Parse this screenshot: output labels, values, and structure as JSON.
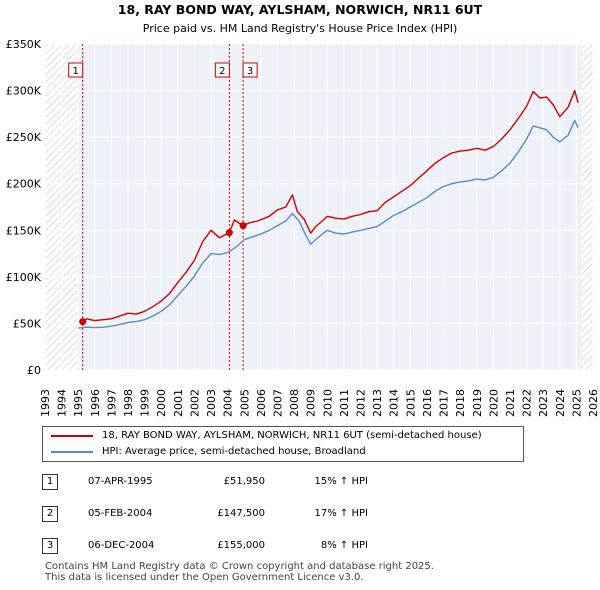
{
  "chart_data": {
    "type": "line",
    "title": "18, RAY BOND WAY, AYLSHAM, NORWICH, NR11 6UT",
    "subtitle": "Price paid vs. HM Land Registry's House Price Index (HPI)",
    "xlim": [
      1993,
      2026
    ],
    "ylim": [
      0,
      350000
    ],
    "x_ticks": [
      1993,
      1994,
      1995,
      1996,
      1997,
      1998,
      1999,
      2000,
      2001,
      2002,
      2003,
      2004,
      2005,
      2006,
      2007,
      2008,
      2009,
      2010,
      2011,
      2012,
      2013,
      2014,
      2015,
      2016,
      2017,
      2018,
      2019,
      2020,
      2021,
      2022,
      2023,
      2024,
      2025,
      2026
    ],
    "y_ticks": [
      0,
      50000,
      100000,
      150000,
      200000,
      250000,
      300000,
      350000
    ],
    "y_tick_labels": [
      "£0",
      "£50K",
      "£100K",
      "£150K",
      "£200K",
      "£250K",
      "£300K",
      "£350K"
    ],
    "hatch_before": 1995.0,
    "hatch_after": 2025.3,
    "series": [
      {
        "name": "18, RAY BOND WAY, AYLSHAM, NORWICH, NR11 6UT (semi-detached house)",
        "color": "#cc0000",
        "x": [
          1995.27,
          1995.5,
          1996,
          1996.5,
          1997,
          1997.5,
          1998,
          1998.5,
          1999,
          1999.5,
          2000,
          2000.5,
          2001,
          2001.5,
          2002,
          2002.5,
          2003,
          2003.5,
          2004.1,
          2004.4,
          2004.93,
          2005.3,
          2005.8,
          2006.5,
          2007,
          2007.5,
          2007.9,
          2008.2,
          2008.6,
          2009,
          2009.3,
          2009.7,
          2010,
          2010.5,
          2011,
          2011.5,
          2012,
          2012.5,
          2013,
          2013.5,
          2014,
          2014.5,
          2015,
          2015.5,
          2016,
          2016.5,
          2017,
          2017.5,
          2018,
          2018.5,
          2019,
          2019.5,
          2020,
          2020.5,
          2021,
          2021.5,
          2022,
          2022.4,
          2022.8,
          2023.2,
          2023.6,
          2024,
          2024.5,
          2024.9,
          2025.1
        ],
        "y": [
          51950,
          55000,
          53000,
          54000,
          55000,
          58000,
          61000,
          60000,
          63000,
          68000,
          74000,
          82000,
          94000,
          105000,
          118000,
          138000,
          150000,
          142000,
          147500,
          161000,
          155000,
          158000,
          160000,
          165000,
          172000,
          175000,
          188000,
          170000,
          162000,
          147000,
          154000,
          160000,
          165000,
          163000,
          162000,
          165000,
          167000,
          170000,
          171000,
          180000,
          186000,
          192000,
          198000,
          206000,
          214000,
          222000,
          228000,
          233000,
          235000,
          236000,
          238000,
          236000,
          240000,
          248000,
          258000,
          270000,
          283000,
          299000,
          292000,
          293000,
          285000,
          272000,
          282000,
          300000,
          287000
        ]
      },
      {
        "name": "HPI: Average price, semi-detached house, Broadland",
        "color": "#5b8ac5",
        "x": [
          1995,
          1995.5,
          1996,
          1996.5,
          1997,
          1997.5,
          1998,
          1998.5,
          1999,
          1999.5,
          2000,
          2000.5,
          2001,
          2001.5,
          2002,
          2002.5,
          2003,
          2003.5,
          2004,
          2004.5,
          2005,
          2005.5,
          2006,
          2006.5,
          2007,
          2007.5,
          2007.9,
          2008.3,
          2008.7,
          2009,
          2009.3,
          2009.7,
          2010,
          2010.5,
          2011,
          2011.5,
          2012,
          2012.5,
          2013,
          2013.5,
          2014,
          2014.5,
          2015,
          2015.5,
          2016,
          2016.5,
          2017,
          2017.5,
          2018,
          2018.5,
          2019,
          2019.5,
          2020,
          2020.5,
          2021,
          2021.5,
          2022,
          2022.4,
          2022.8,
          2023.2,
          2023.6,
          2024,
          2024.5,
          2024.9,
          2025.1
        ],
        "y": [
          45000,
          46000,
          45500,
          46000,
          47000,
          49000,
          51000,
          52000,
          54000,
          58000,
          63000,
          70000,
          80000,
          90000,
          101000,
          115000,
          125000,
          124000,
          126000,
          132000,
          140000,
          143000,
          146000,
          150000,
          155000,
          160000,
          168000,
          160000,
          145000,
          135000,
          140000,
          146000,
          150000,
          147000,
          146000,
          148000,
          150000,
          152000,
          154000,
          160000,
          166000,
          170000,
          175000,
          180000,
          185000,
          192000,
          197000,
          200000,
          202000,
          203000,
          205000,
          204000,
          207000,
          214000,
          222000,
          234000,
          248000,
          262000,
          260000,
          258000,
          250000,
          245000,
          252000,
          268000,
          260000
        ]
      }
    ],
    "sales": [
      {
        "label": "1",
        "x": 1995.27,
        "y": 51950
      },
      {
        "label": "2",
        "x": 2004.1,
        "y": 147500
      },
      {
        "label": "3",
        "x": 2004.93,
        "y": 155000
      }
    ],
    "marker_color": "#cc0000",
    "vline_color": "#cc0000"
  },
  "legend": {
    "property_label": "18, RAY BOND WAY, AYLSHAM, NORWICH, NR11 6UT (semi-detached house)",
    "hpi_label": "HPI: Average price, semi-detached house, Broadland"
  },
  "transactions": [
    {
      "num": "1",
      "date": "07-APR-1995",
      "price": "£51,950",
      "hpi": "15% ↑ HPI"
    },
    {
      "num": "2",
      "date": "05-FEB-2004",
      "price": "£147,500",
      "hpi": "17% ↑ HPI"
    },
    {
      "num": "3",
      "date": "06-DEC-2004",
      "price": "£155,000",
      "hpi": "8% ↑ HPI"
    }
  ],
  "footer": {
    "line1": "Contains HM Land Registry data © Crown copyright and database right 2025.",
    "line2": "This data is licensed under the Open Government Licence v3.0."
  }
}
